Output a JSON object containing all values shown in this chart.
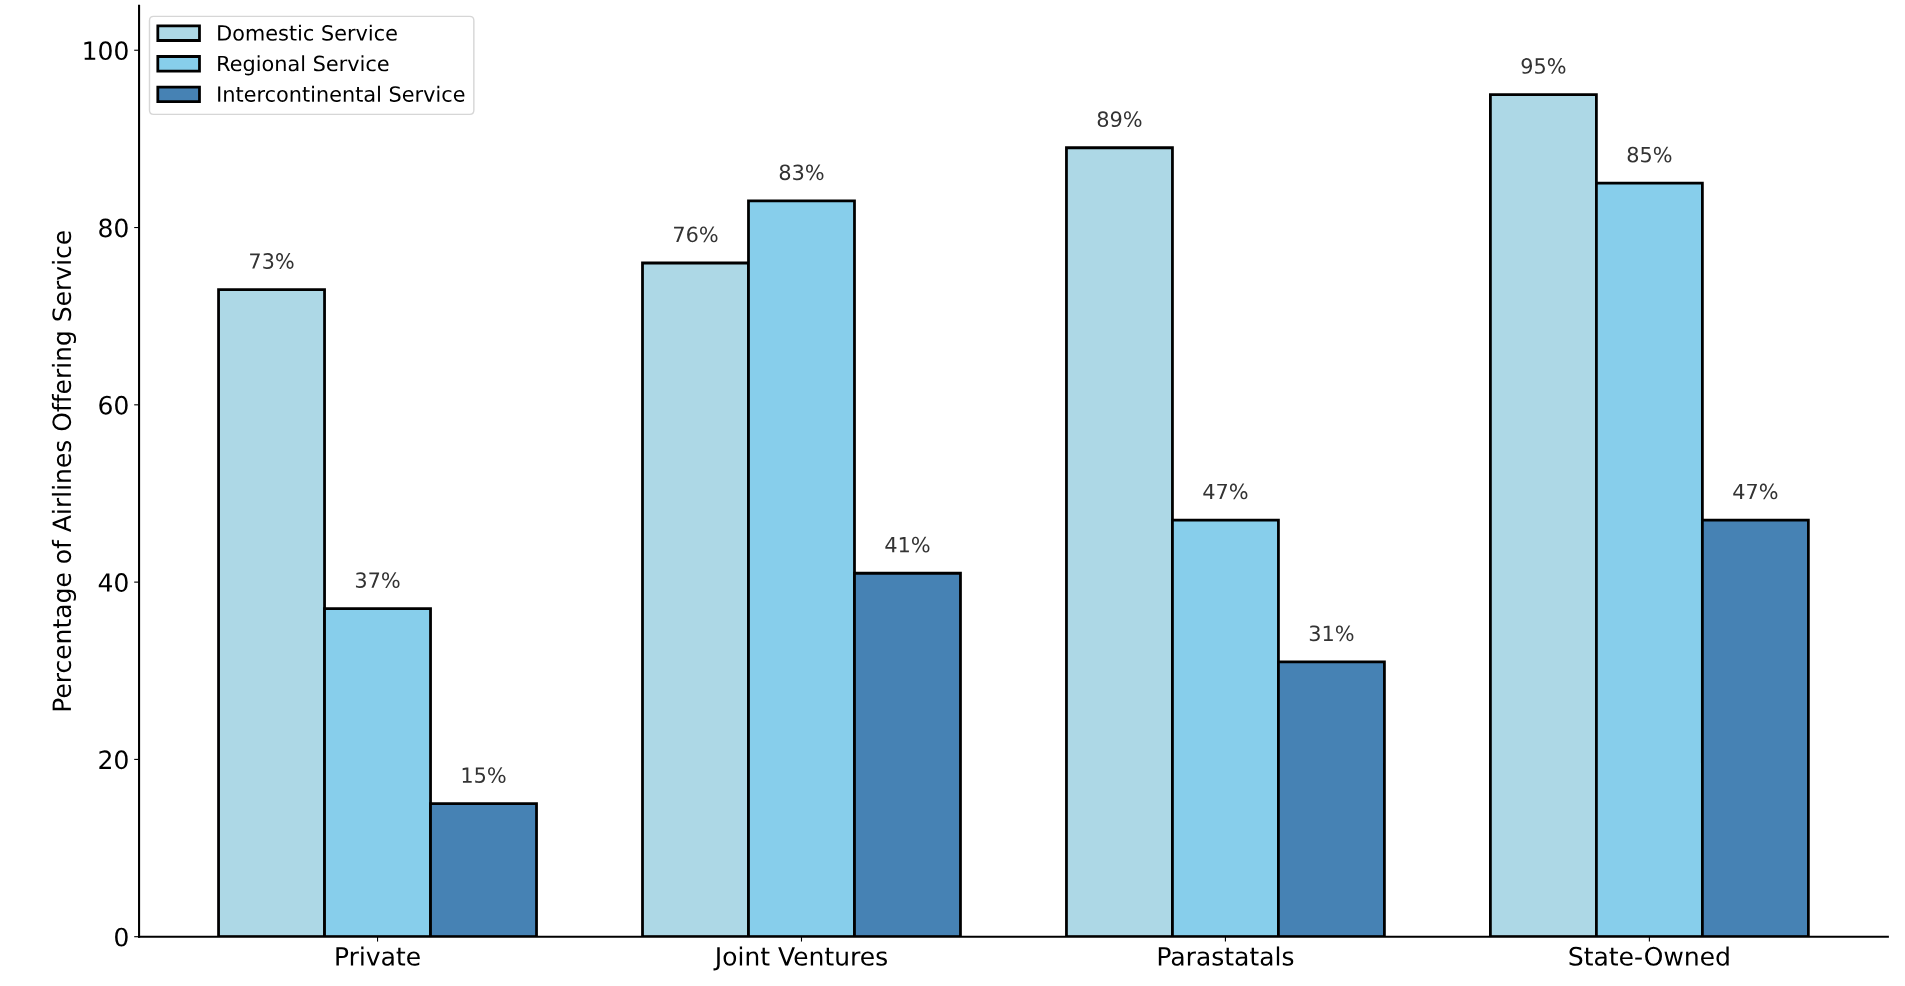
{
  "chart_data": {
    "type": "bar",
    "ylabel": "Percentage of Airlines Offering Service",
    "categories": [
      "Private",
      "Joint Ventures",
      "Parastatals",
      "State-Owned"
    ],
    "series": [
      {
        "name": "Domestic Service",
        "color": "#add8e6",
        "values": [
          73,
          76,
          89,
          95
        ],
        "value_labels": [
          "73%",
          "76%",
          "89%",
          "95%"
        ]
      },
      {
        "name": "Regional Service",
        "color": "#87ceeb",
        "values": [
          37,
          83,
          47,
          85
        ],
        "value_labels": [
          "37%",
          "83%",
          "47%",
          "85%"
        ]
      },
      {
        "name": "Intercontinental Service",
        "color": "#4682b4",
        "values": [
          15,
          41,
          31,
          47
        ],
        "value_labels": [
          "15%",
          "41%",
          "31%",
          "47%"
        ]
      }
    ],
    "ylim": [
      0,
      105
    ],
    "yticks": [
      0,
      20,
      40,
      60,
      80,
      100
    ],
    "grid": false,
    "legend": "top left"
  }
}
